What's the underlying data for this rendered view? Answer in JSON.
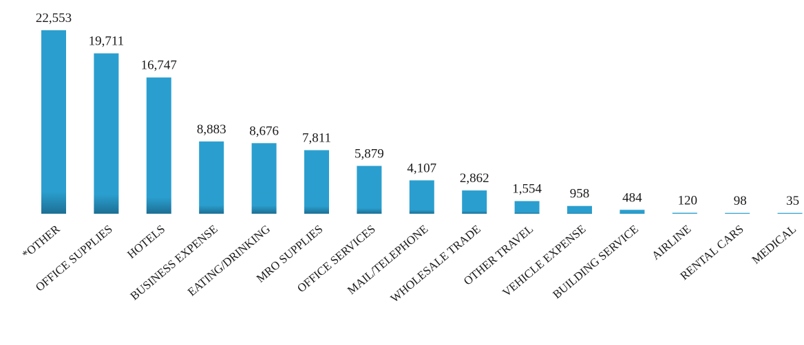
{
  "chart_data": {
    "type": "bar",
    "categories": [
      "*OTHER",
      "OFFICE SUPPLIES",
      "HOTELS",
      "BUSINESS EXPENSE",
      "EATING/DRINKING",
      "MRO SUPPLIES",
      "OFFICE SERVICES",
      "MAIL/TELEPHONE",
      "WHOLESALE TRADE",
      "OTHER TRAVEL",
      "VEHICLE EXPENSE",
      "BUILDING SERVICE",
      "AIRLINE",
      "RENTAL CARS",
      "MEDICAL"
    ],
    "values": [
      22553,
      19711,
      16747,
      8883,
      8676,
      7811,
      5879,
      4107,
      2862,
      1554,
      958,
      484,
      120,
      98,
      35
    ],
    "value_labels": [
      "22,553",
      "19,711",
      "16,747",
      "8,883",
      "8,676",
      "7,811",
      "5,879",
      "4,107",
      "2,862",
      "1,554",
      "958",
      "484",
      "120",
      "98",
      "35"
    ],
    "ylim": [
      0,
      22553
    ],
    "grid": false,
    "bar_color": "#2a9fcf",
    "bar_edge_color": "#1d6f94"
  }
}
